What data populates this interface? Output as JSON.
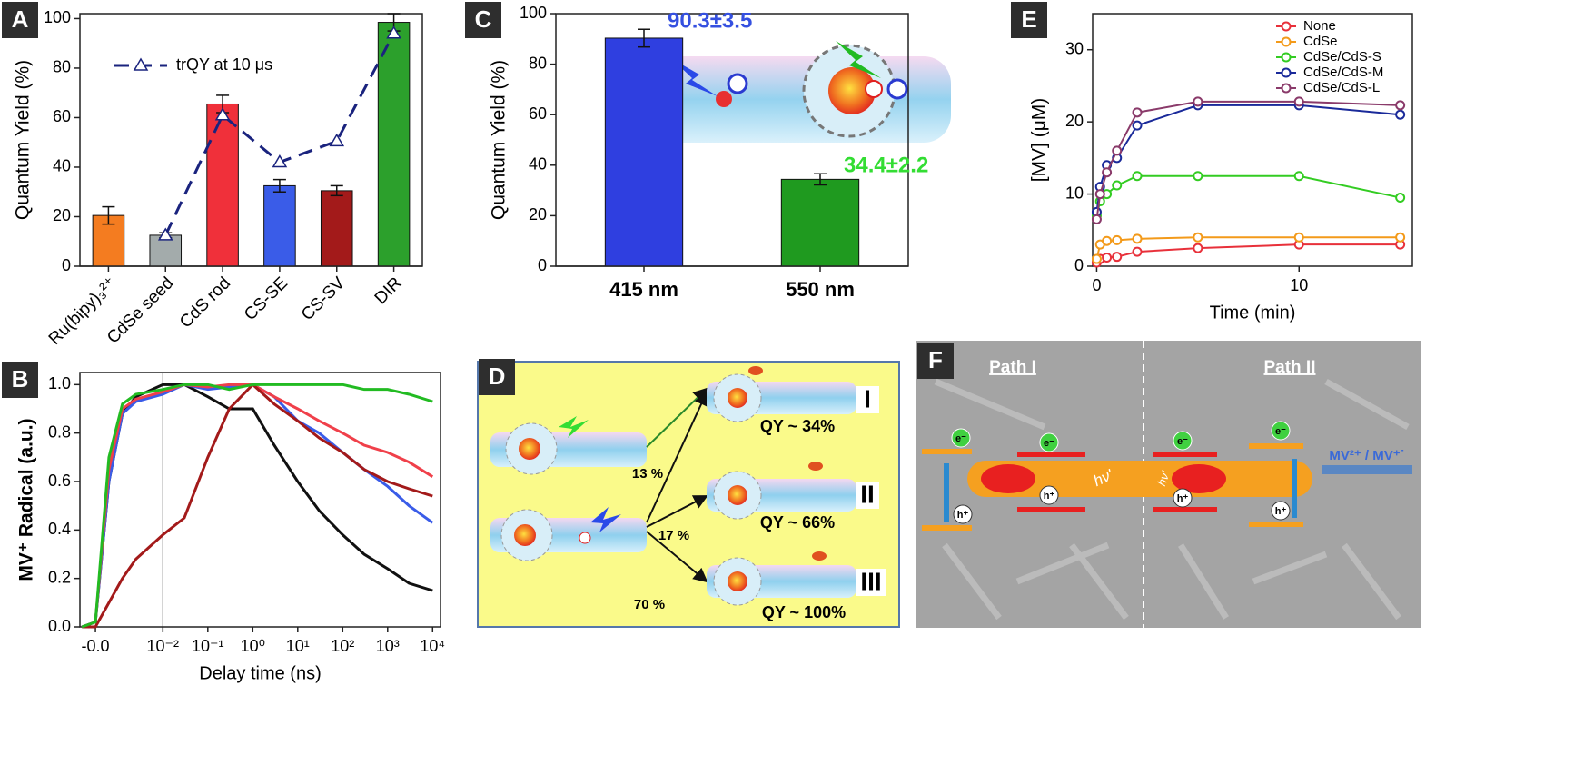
{
  "chart_data": [
    {
      "panel_label": "A",
      "type": "bar",
      "ylabel": "Quantum Yield (%)",
      "categories": [
        "Ru(bipy)₃²⁺",
        "CdSe seed",
        "CdS rod",
        "CS-SE",
        "CS-SV",
        "DIR"
      ],
      "values": [
        20.5,
        12.5,
        65.5,
        32.5,
        30.5,
        98.5
      ],
      "errors": [
        3.5,
        1,
        3.5,
        2.5,
        2,
        3.5
      ],
      "colors": [
        "#f47c20",
        "#a3abab",
        "#f0303a",
        "#3a5ce8",
        "#a31a1a",
        "#2ca02c"
      ],
      "xtick_rotation": -45,
      "ylim": [
        0,
        102
      ],
      "yticks": [
        0,
        20,
        40,
        60,
        80,
        100
      ],
      "line_series": {
        "name": "trQY at 10 μs",
        "color": "#1a237e",
        "values": [
          null,
          12.5,
          61,
          42,
          50.5,
          94
        ]
      },
      "legend": "upper left"
    },
    {
      "panel_label": "B",
      "type": "line",
      "xlabel": "Delay time (ns)",
      "ylabel": "MV⁺ Radical (a.u.)",
      "xscale": "symlog",
      "linthresh": 0.01,
      "xlim": [
        -0.0023,
        15000
      ],
      "xticks": [
        {
          "value": 0,
          "label": "-0.0"
        },
        {
          "value": 0.01,
          "label": "10⁻²"
        },
        {
          "value": 0.1,
          "label": "10⁻¹"
        },
        {
          "value": 1,
          "label": "10⁰"
        },
        {
          "value": 10,
          "label": "10¹"
        },
        {
          "value": 100,
          "label": "10²"
        },
        {
          "value": 1000,
          "label": "10³"
        },
        {
          "value": 10000,
          "label": "10⁴"
        }
      ],
      "ylim": [
        0,
        1.05
      ],
      "yticks": [
        {
          "value": 0,
          "label": "0.0"
        },
        {
          "value": 0.2,
          "label": "0.2"
        },
        {
          "value": 0.4,
          "label": "0.4"
        },
        {
          "value": 0.6,
          "label": "0.6"
        },
        {
          "value": 0.8,
          "label": "0.8"
        },
        {
          "value": 1,
          "label": "1.0"
        }
      ],
      "reference_x": 0.01,
      "x": [
        -0.002,
        0,
        0.002,
        0.004,
        0.006,
        0.01,
        0.03,
        0.1,
        0.3,
        1,
        3,
        10,
        30,
        100,
        300,
        1000,
        3000,
        10000
      ],
      "series": [
        {
          "color": "#111111",
          "values": [
            0,
            0.02,
            0.6,
            0.88,
            0.95,
            1.0,
            1.0,
            0.95,
            0.9,
            0.9,
            0.75,
            0.6,
            0.48,
            0.38,
            0.3,
            0.24,
            0.18,
            0.15
          ]
        },
        {
          "color": "#3a5ce8",
          "values": [
            0,
            0.02,
            0.6,
            0.88,
            0.93,
            0.96,
            1.0,
            0.98,
            0.99,
            1.0,
            0.95,
            0.85,
            0.8,
            0.72,
            0.65,
            0.58,
            0.5,
            0.43
          ]
        },
        {
          "color": "#f0404a",
          "values": [
            0,
            0.02,
            0.65,
            0.9,
            0.94,
            0.97,
            1.0,
            0.99,
            1.0,
            1.0,
            0.95,
            0.9,
            0.85,
            0.8,
            0.75,
            0.72,
            0.68,
            0.62
          ]
        },
        {
          "color": "#a31a1a",
          "values": [
            0,
            0,
            0.1,
            0.2,
            0.28,
            0.38,
            0.45,
            0.7,
            0.9,
            1.0,
            0.92,
            0.85,
            0.78,
            0.72,
            0.65,
            0.6,
            0.57,
            0.54
          ]
        },
        {
          "color": "#22bb22",
          "values": [
            0,
            0.02,
            0.7,
            0.92,
            0.96,
            0.98,
            1.0,
            1.0,
            0.98,
            1.0,
            1.0,
            1.0,
            1.0,
            1.0,
            0.98,
            0.98,
            0.96,
            0.93
          ]
        }
      ]
    },
    {
      "panel_label": "C",
      "type": "bar",
      "ylabel": "Quantum Yield (%)",
      "categories": [
        "415 nm",
        "550 nm"
      ],
      "values": [
        90.3,
        34.4
      ],
      "errors": [
        3.5,
        2.2
      ],
      "value_labels": [
        "90.3±3.5",
        "34.4±2.2"
      ],
      "colors": [
        "#2f3fe0",
        "#1f9a1f"
      ],
      "value_label_colors": [
        "#3550e0",
        "#33dd33"
      ],
      "ylim": [
        0,
        100
      ],
      "yticks": [
        0,
        20,
        40,
        60,
        80,
        100
      ]
    },
    {
      "panel_label": "E",
      "type": "line",
      "markers": true,
      "xlabel": "Time (min)",
      "ylabel": "[MV] (μM)",
      "xlim": [
        -0.2,
        15.6
      ],
      "xticks": [
        0,
        10
      ],
      "ylim": [
        0,
        35
      ],
      "yticks": [
        0,
        10,
        20,
        30
      ],
      "legend": "upper right",
      "x": [
        0,
        0.17,
        0.5,
        1,
        2,
        5,
        10,
        15
      ],
      "series": [
        {
          "name": "None",
          "color": "#e8303a",
          "values": [
            0.5,
            1,
            1.2,
            1.3,
            2,
            2.5,
            3,
            3
          ]
        },
        {
          "name": "CdSe",
          "color": "#f39a1a",
          "values": [
            1,
            3,
            3.5,
            3.6,
            3.8,
            4,
            4,
            4
          ]
        },
        {
          "name": "CdSe/CdS-S",
          "color": "#33cc22",
          "values": [
            7,
            9,
            10,
            11.2,
            12.5,
            12.5,
            12.5,
            9.5
          ]
        },
        {
          "name": "CdSe/CdS-M",
          "color": "#1a2a9a",
          "values": [
            7.5,
            11,
            14,
            15,
            19.5,
            22.3,
            22.3,
            21
          ]
        },
        {
          "name": "CdSe/CdS-L",
          "color": "#8a3a6a",
          "values": [
            6.5,
            10,
            13,
            16,
            21.3,
            22.8,
            22.8,
            22.3
          ]
        }
      ]
    }
  ],
  "diagram_d": {
    "panel_label": "D",
    "percentages": [
      "13 %",
      "17 %",
      "70 %"
    ],
    "yields": [
      "QY ~ 34%",
      "QY ~ 66%",
      "QY ~ 100%"
    ],
    "paths": [
      "I",
      "II",
      "III"
    ]
  },
  "diagram_f": {
    "panel_label": "F",
    "path_labels": [
      "Path I",
      "Path II"
    ],
    "redox": "MV²⁺ / MV⁺˙",
    "electron": "e⁻",
    "hole": "h⁺",
    "photon": "hν'"
  }
}
